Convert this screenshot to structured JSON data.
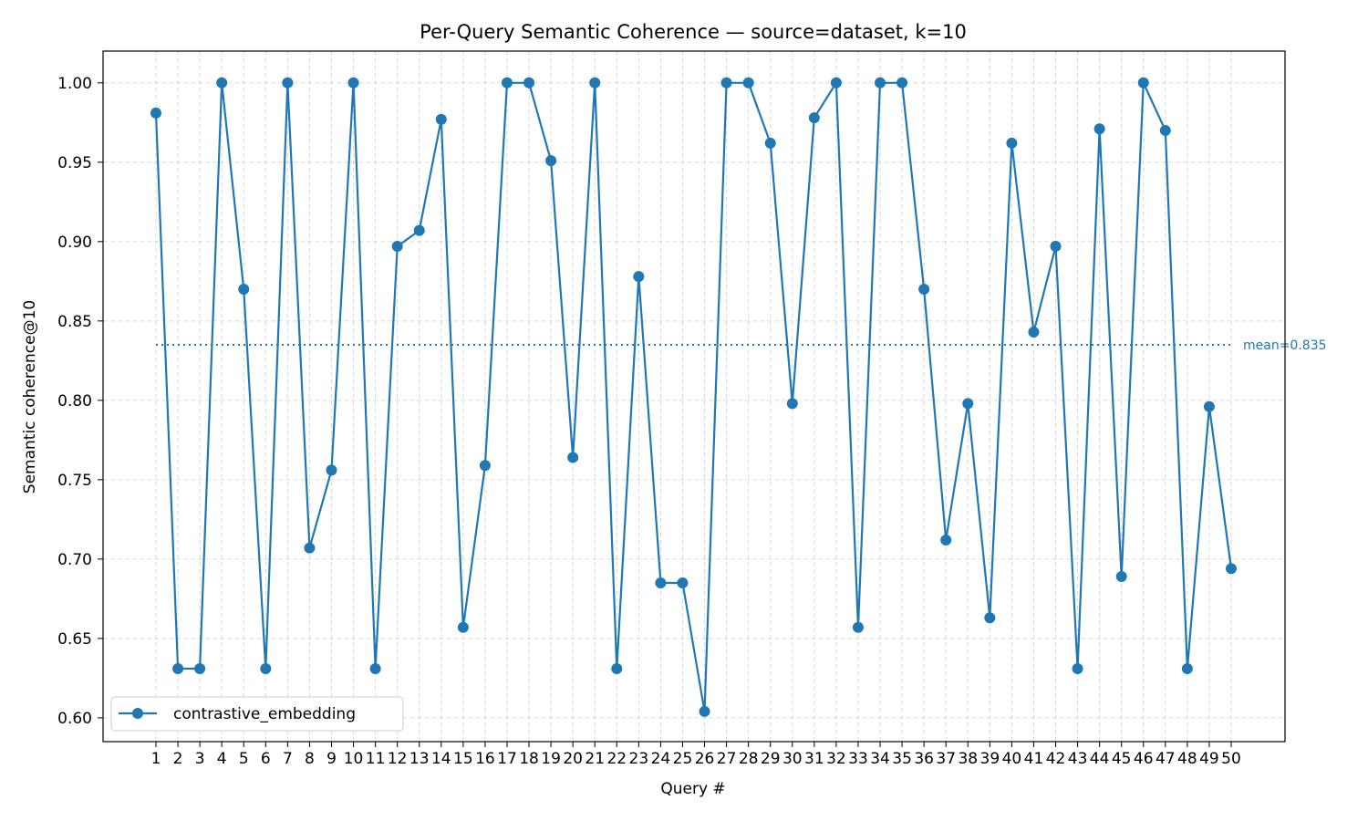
{
  "chart_data": {
    "type": "line",
    "title": "Per-Query Semantic Coherence — source=dataset, k=10",
    "xlabel": "Query #",
    "ylabel": "Semantic coherence@10",
    "ylim": [
      0.585,
      1.02
    ],
    "yticks": [
      0.6,
      0.65,
      0.7,
      0.75,
      0.8,
      0.85,
      0.9,
      0.95,
      1.0
    ],
    "grid": true,
    "legend_placement": "lower-left",
    "x": [
      1,
      2,
      3,
      4,
      5,
      6,
      7,
      8,
      9,
      10,
      11,
      12,
      13,
      14,
      15,
      16,
      17,
      18,
      19,
      20,
      21,
      22,
      23,
      24,
      25,
      26,
      27,
      28,
      29,
      30,
      31,
      32,
      33,
      34,
      35,
      36,
      37,
      38,
      39,
      40,
      41,
      42,
      43,
      44,
      45,
      46,
      47,
      48,
      49,
      50
    ],
    "series": [
      {
        "name": "contrastive_embedding",
        "color": "#1f77b4",
        "values": [
          0.981,
          0.631,
          0.631,
          1.0,
          0.87,
          0.631,
          1.0,
          0.707,
          0.756,
          1.0,
          0.631,
          0.897,
          0.907,
          0.977,
          0.657,
          0.759,
          1.0,
          1.0,
          0.951,
          0.764,
          1.0,
          0.631,
          0.878,
          0.685,
          0.685,
          0.604,
          1.0,
          1.0,
          0.962,
          0.798,
          0.978,
          1.0,
          0.657,
          1.0,
          1.0,
          0.87,
          0.712,
          0.798,
          0.663,
          0.962,
          0.843,
          0.897,
          0.631,
          0.971,
          0.689,
          1.0,
          0.97,
          0.631,
          0.796,
          0.694
        ]
      }
    ],
    "mean": {
      "value": 0.835,
      "label": "mean=0.835",
      "color": "#1f77b4"
    }
  }
}
